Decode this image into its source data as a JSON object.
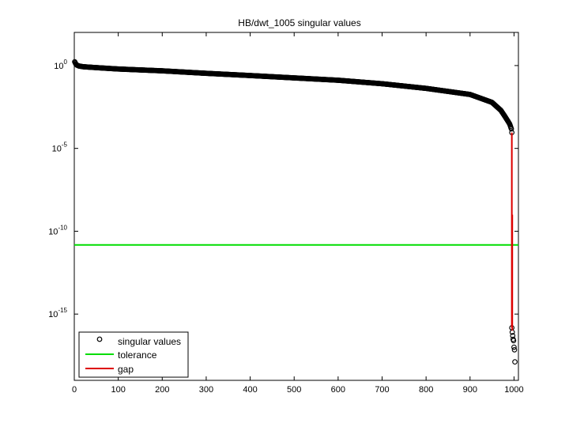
{
  "chart_data": {
    "type": "scatter",
    "title": "HB/dwt_1005 singular values",
    "xlabel": "",
    "ylabel": "",
    "xlim": [
      0,
      1010
    ],
    "ylim": [
      1e-19,
      100.0
    ],
    "y_scale": "log",
    "x_ticks": [
      0,
      100,
      200,
      300,
      400,
      500,
      600,
      700,
      800,
      900,
      1000
    ],
    "y_ticks": [
      {
        "value": 1,
        "base": "10",
        "exponent": "0"
      },
      {
        "value": 1e-05,
        "base": "10",
        "exponent": "-5"
      },
      {
        "value": 1e-10,
        "base": "10",
        "exponent": "-10"
      },
      {
        "value": 1e-15,
        "base": "10",
        "exponent": "-15"
      }
    ],
    "grid": false,
    "legend_position": "bottom-left",
    "series": [
      {
        "name": "singular values",
        "marker": "circle",
        "color": "#000000",
        "curve_points": [
          [
            1,
            1.7
          ],
          [
            3,
            1.3
          ],
          [
            5,
            1.1
          ],
          [
            10,
            0.95
          ],
          [
            20,
            0.85
          ],
          [
            50,
            0.75
          ],
          [
            100,
            0.62
          ],
          [
            200,
            0.48
          ],
          [
            300,
            0.34
          ],
          [
            400,
            0.25
          ],
          [
            500,
            0.18
          ],
          [
            600,
            0.13
          ],
          [
            700,
            0.08
          ],
          [
            800,
            0.042
          ],
          [
            900,
            0.018
          ],
          [
            950,
            0.006
          ],
          [
            970,
            0.002
          ],
          [
            980,
            0.0008
          ],
          [
            990,
            0.0003
          ],
          [
            994,
            0.00015
          ],
          [
            995,
            9e-05
          ]
        ],
        "tail_points": [
          [
            995,
            1.5e-16
          ],
          [
            996,
            8e-17
          ],
          [
            997,
            5e-17
          ],
          [
            998,
            3e-17
          ],
          [
            999,
            2.5e-17
          ],
          [
            1000,
            1e-17
          ],
          [
            1001,
            7e-18
          ],
          [
            1002,
            1.3e-18
          ]
        ]
      },
      {
        "name": "tolerance",
        "color": "#00dd00",
        "value": 1.5e-11
      },
      {
        "name": "gap",
        "color": "#dd0000",
        "segments": [
          {
            "x": 995,
            "y_from": 9e-05,
            "y_to": 1.5e-16
          },
          {
            "x": 996,
            "y_from": 1e-09,
            "y_to": 1e-16
          }
        ]
      }
    ]
  }
}
